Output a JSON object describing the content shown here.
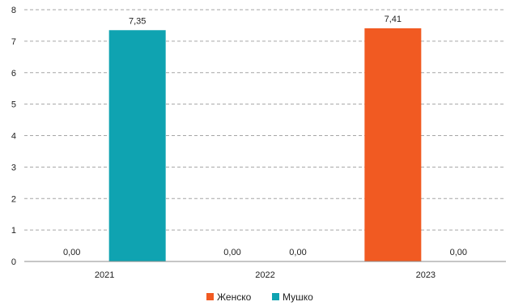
{
  "chart_data": {
    "type": "bar",
    "categories": [
      "2021",
      "2022",
      "2023"
    ],
    "series": [
      {
        "name": "Женско",
        "color": "#F15A22",
        "values": [
          0.0,
          0.0,
          7.41
        ],
        "labels": [
          "0,00",
          "0,00",
          "7,41"
        ]
      },
      {
        "name": "Мушко",
        "color": "#0FA3B1",
        "values": [
          7.35,
          0.0,
          0.0
        ],
        "labels": [
          "7,35",
          "0,00",
          "0,00"
        ]
      }
    ],
    "ylim": [
      0,
      8
    ],
    "yticks": [
      "0",
      "1",
      "2",
      "3",
      "4",
      "5",
      "6",
      "7",
      "8"
    ],
    "grid": true,
    "legend": "bottom-center"
  }
}
